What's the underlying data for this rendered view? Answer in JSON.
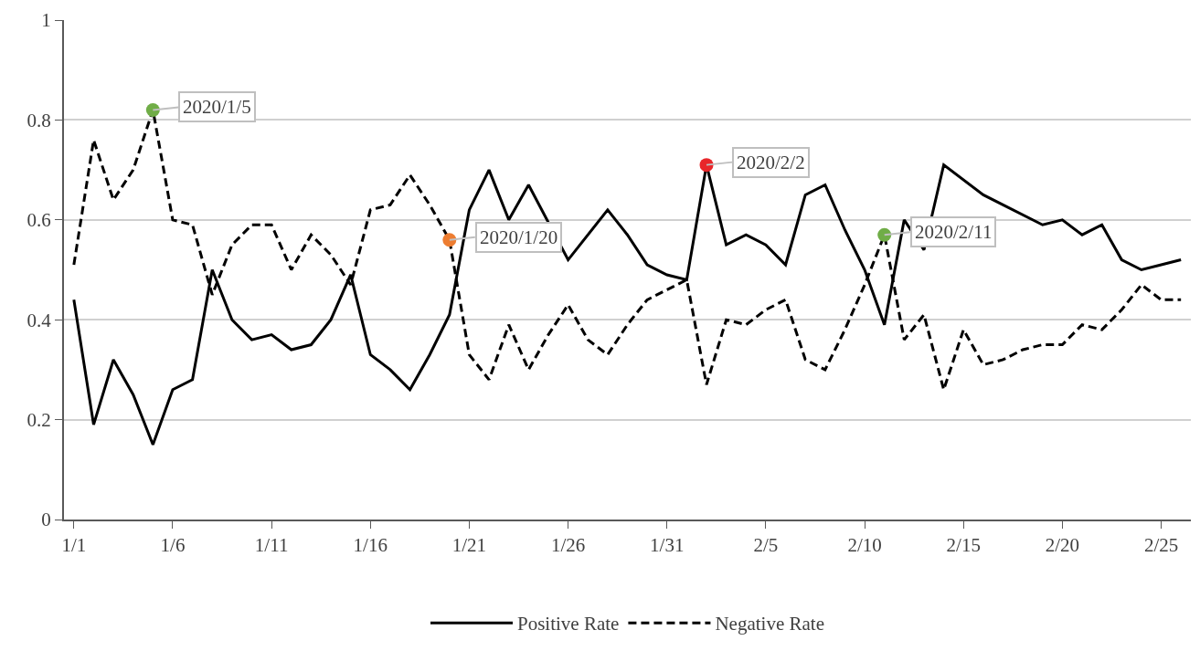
{
  "chart_data": {
    "type": "line",
    "x": [
      "2020-01-01",
      "2020-01-02",
      "2020-01-03",
      "2020-01-04",
      "2020-01-05",
      "2020-01-06",
      "2020-01-07",
      "2020-01-08",
      "2020-01-09",
      "2020-01-10",
      "2020-01-11",
      "2020-01-12",
      "2020-01-13",
      "2020-01-14",
      "2020-01-15",
      "2020-01-16",
      "2020-01-17",
      "2020-01-18",
      "2020-01-19",
      "2020-01-20",
      "2020-01-21",
      "2020-01-22",
      "2020-01-23",
      "2020-01-24",
      "2020-01-25",
      "2020-01-26",
      "2020-01-27",
      "2020-01-28",
      "2020-01-29",
      "2020-01-30",
      "2020-01-31",
      "2020-02-01",
      "2020-02-02",
      "2020-02-03",
      "2020-02-04",
      "2020-02-05",
      "2020-02-06",
      "2020-02-07",
      "2020-02-08",
      "2020-02-09",
      "2020-02-10",
      "2020-02-11",
      "2020-02-12",
      "2020-02-13",
      "2020-02-14",
      "2020-02-15",
      "2020-02-16",
      "2020-02-17",
      "2020-02-18",
      "2020-02-19",
      "2020-02-20",
      "2020-02-21",
      "2020-02-22",
      "2020-02-23",
      "2020-02-24",
      "2020-02-25",
      "2020-02-26"
    ],
    "series": [
      {
        "name": "Positive Rate",
        "color": "#000000",
        "line_style": "solid",
        "values": [
          0.44,
          0.19,
          0.32,
          0.25,
          0.15,
          0.26,
          0.28,
          0.5,
          0.4,
          0.36,
          0.37,
          0.34,
          0.35,
          0.4,
          0.49,
          0.33,
          0.3,
          0.26,
          0.33,
          0.41,
          0.62,
          0.7,
          0.6,
          0.67,
          null,
          0.52,
          null,
          0.62,
          0.57,
          0.51,
          0.49,
          0.48,
          0.71,
          0.55,
          0.57,
          0.55,
          0.51,
          0.65,
          0.67,
          0.58,
          0.5,
          0.39,
          0.6,
          0.54,
          0.71,
          null,
          0.65,
          0.63,
          null,
          0.59,
          0.6,
          0.57,
          0.59,
          0.52,
          0.5,
          0.51,
          0.52
        ]
      },
      {
        "name": "Negative Rate",
        "color": "#000000",
        "line_style": "dashed",
        "values": [
          0.51,
          0.76,
          0.64,
          0.7,
          0.82,
          0.6,
          0.59,
          0.45,
          0.55,
          0.59,
          0.59,
          0.5,
          0.57,
          0.53,
          0.47,
          0.62,
          0.63,
          0.69,
          0.63,
          0.56,
          0.33,
          0.28,
          0.39,
          0.3,
          0.37,
          0.43,
          0.36,
          0.33,
          0.39,
          0.44,
          0.46,
          0.48,
          0.27,
          0.4,
          0.39,
          0.42,
          0.44,
          0.32,
          0.3,
          0.38,
          0.47,
          0.57,
          0.36,
          0.41,
          0.26,
          0.38,
          0.31,
          0.32,
          0.34,
          0.35,
          0.35,
          0.39,
          0.38,
          0.42,
          0.47,
          0.44,
          0.44
        ]
      },
      {
        "type": "scatter",
        "marker": "circle",
        "x": [
          "2020-01-05",
          "2020-01-20",
          "2020-02-02",
          "2020-02-11"
        ],
        "colors": [
          "#70ad47",
          "#ed7d31",
          "#e8262a",
          "#70ad47"
        ],
        "values": [
          0.82,
          0.56,
          0.71,
          0.57
        ]
      }
    ],
    "annotations": [
      {
        "text": "2020/1/5",
        "x": "2020-01-05",
        "y": 0.82
      },
      {
        "text": "2020/1/20",
        "x": "2020-01-20",
        "y": 0.56
      },
      {
        "text": "2020/2/2",
        "x": "2020-02-02",
        "y": 0.71
      },
      {
        "text": "2020/2/11",
        "x": "2020-02-11",
        "y": 0.57
      }
    ],
    "xlim": [
      "2019-12-31T12:00",
      "2020-02-26T12:00"
    ],
    "xticks": [
      {
        "value": "2020-01-01",
        "label": "1/1"
      },
      {
        "value": "2020-01-06",
        "label": "1/6"
      },
      {
        "value": "2020-01-11",
        "label": "1/11"
      },
      {
        "value": "2020-01-16",
        "label": "1/16"
      },
      {
        "value": "2020-01-21",
        "label": "1/21"
      },
      {
        "value": "2020-01-26",
        "label": "1/26"
      },
      {
        "value": "2020-01-31",
        "label": "1/31"
      },
      {
        "value": "2020-02-05",
        "label": "2/5"
      },
      {
        "value": "2020-02-10",
        "label": "2/10"
      },
      {
        "value": "2020-02-15",
        "label": "2/15"
      },
      {
        "value": "2020-02-20",
        "label": "2/20"
      },
      {
        "value": "2020-02-25",
        "label": "2/25"
      }
    ],
    "ylim": [
      0,
      1
    ],
    "yticks": [
      0,
      0.2,
      0.4,
      0.6,
      0.8,
      1
    ],
    "grid": "y",
    "legend": "bottom"
  }
}
